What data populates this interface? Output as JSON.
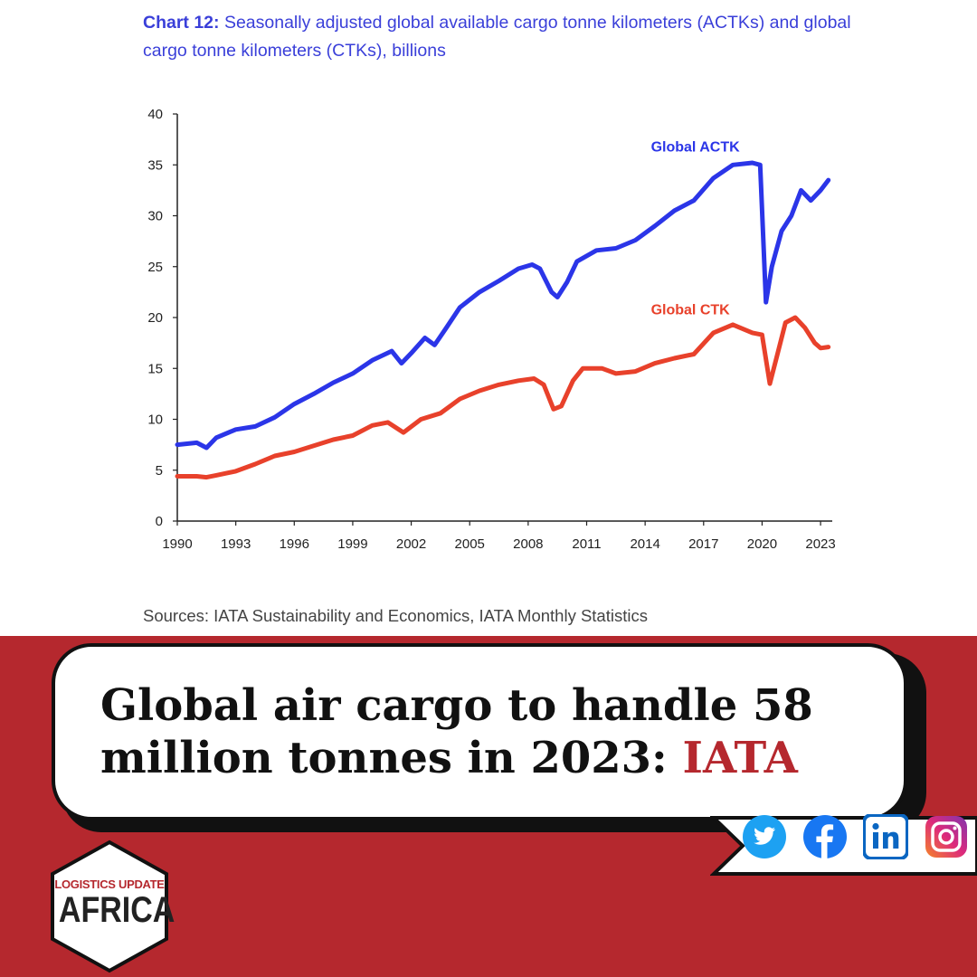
{
  "chart_title": {
    "prefix": "Chart 12:",
    "text": " Seasonally adjusted global available cargo tonne kilometers (ACTKs) and global cargo tonne kilometers (CTKs), billions"
  },
  "chart_data": {
    "type": "line",
    "title": "Chart 12: Seasonally adjusted global available cargo tonne kilometers (ACTKs) and global cargo tonne kilometers (CTKs), billions",
    "xlabel": "",
    "ylabel": "",
    "xlim": [
      1990,
      2023.6
    ],
    "ylim": [
      0,
      40
    ],
    "x_ticks": [
      "1990",
      "1993",
      "1996",
      "1999",
      "2002",
      "2005",
      "2008",
      "2011",
      "2014",
      "2017",
      "2020",
      "2023"
    ],
    "y_ticks": [
      "0",
      "5",
      "10",
      "15",
      "20",
      "25",
      "30",
      "35",
      "40"
    ],
    "grid": false,
    "legend": "inline labels",
    "series": [
      {
        "name": "Global ACTK",
        "color": "#2b35e8",
        "points": [
          [
            1990,
            7.5
          ],
          [
            1991,
            7.7
          ],
          [
            1991.5,
            7.2
          ],
          [
            1992,
            8.2
          ],
          [
            1993,
            9.0
          ],
          [
            1994,
            9.3
          ],
          [
            1995,
            10.2
          ],
          [
            1996,
            11.5
          ],
          [
            1997,
            12.5
          ],
          [
            1998,
            13.6
          ],
          [
            1999,
            14.5
          ],
          [
            2000,
            15.8
          ],
          [
            2001,
            16.7
          ],
          [
            2001.5,
            15.5
          ],
          [
            2002,
            16.5
          ],
          [
            2002.7,
            18.0
          ],
          [
            2003.2,
            17.3
          ],
          [
            2003.8,
            19.0
          ],
          [
            2004.5,
            21.0
          ],
          [
            2005.5,
            22.5
          ],
          [
            2006.5,
            23.6
          ],
          [
            2007.5,
            24.8
          ],
          [
            2008.2,
            25.2
          ],
          [
            2008.6,
            24.8
          ],
          [
            2009.2,
            22.5
          ],
          [
            2009.5,
            22.0
          ],
          [
            2010,
            23.5
          ],
          [
            2010.5,
            25.5
          ],
          [
            2011.5,
            26.6
          ],
          [
            2012.5,
            26.8
          ],
          [
            2013.5,
            27.6
          ],
          [
            2014.5,
            29.0
          ],
          [
            2015.5,
            30.5
          ],
          [
            2016.5,
            31.5
          ],
          [
            2017.5,
            33.7
          ],
          [
            2018.5,
            35.0
          ],
          [
            2019.5,
            35.2
          ],
          [
            2019.9,
            35.0
          ],
          [
            2020.2,
            21.5
          ],
          [
            2020.5,
            25.0
          ],
          [
            2021,
            28.5
          ],
          [
            2021.5,
            30.0
          ],
          [
            2022,
            32.5
          ],
          [
            2022.5,
            31.5
          ],
          [
            2023,
            32.5
          ],
          [
            2023.4,
            33.5
          ]
        ]
      },
      {
        "name": "Global CTK",
        "color": "#e8412b",
        "points": [
          [
            1990,
            4.4
          ],
          [
            1991,
            4.4
          ],
          [
            1991.5,
            4.3
          ],
          [
            1992,
            4.5
          ],
          [
            1993,
            4.9
          ],
          [
            1994,
            5.6
          ],
          [
            1995,
            6.4
          ],
          [
            1996,
            6.8
          ],
          [
            1997,
            7.4
          ],
          [
            1998,
            8.0
          ],
          [
            1999,
            8.4
          ],
          [
            2000,
            9.4
          ],
          [
            2000.8,
            9.7
          ],
          [
            2001.6,
            8.7
          ],
          [
            2002.5,
            10.0
          ],
          [
            2003.5,
            10.6
          ],
          [
            2004.5,
            12.0
          ],
          [
            2005.5,
            12.8
          ],
          [
            2006.5,
            13.4
          ],
          [
            2007.5,
            13.8
          ],
          [
            2008.3,
            14.0
          ],
          [
            2008.8,
            13.4
          ],
          [
            2009.3,
            11.0
          ],
          [
            2009.7,
            11.3
          ],
          [
            2010.3,
            13.8
          ],
          [
            2010.8,
            15.0
          ],
          [
            2011.8,
            15.0
          ],
          [
            2012.5,
            14.5
          ],
          [
            2013.5,
            14.7
          ],
          [
            2014.5,
            15.5
          ],
          [
            2015.5,
            16.0
          ],
          [
            2016.5,
            16.4
          ],
          [
            2017.5,
            18.5
          ],
          [
            2018.5,
            19.3
          ],
          [
            2019.5,
            18.5
          ],
          [
            2020,
            18.3
          ],
          [
            2020.4,
            13.5
          ],
          [
            2020.8,
            16.5
          ],
          [
            2021.2,
            19.5
          ],
          [
            2021.7,
            20.0
          ],
          [
            2022.2,
            19.0
          ],
          [
            2022.7,
            17.5
          ],
          [
            2023,
            17.0
          ],
          [
            2023.4,
            17.1
          ]
        ]
      }
    ]
  },
  "source": "Sources: IATA Sustainability and Economics, IATA Monthly Statistics",
  "headline": {
    "line1": "Global air cargo to handle 58",
    "line2": "million tonnes in 2023: ",
    "accent": "IATA"
  },
  "social": {
    "icons": [
      "twitter-icon",
      "facebook-icon",
      "linkedin-icon",
      "instagram-icon"
    ],
    "colors": {
      "twitter": "#1da1f2",
      "facebook": "#1877f2",
      "linkedin": "#0a66c2",
      "instagram_start": "#f58529",
      "instagram_mid": "#dd2a7b",
      "instagram_end": "#8134af"
    }
  },
  "logo": {
    "top_text": "LOGISTICS UPDATE",
    "bottom_text": "AFRICA"
  },
  "colors": {
    "banner": "#b5282e",
    "title": "#3a3fd9"
  }
}
